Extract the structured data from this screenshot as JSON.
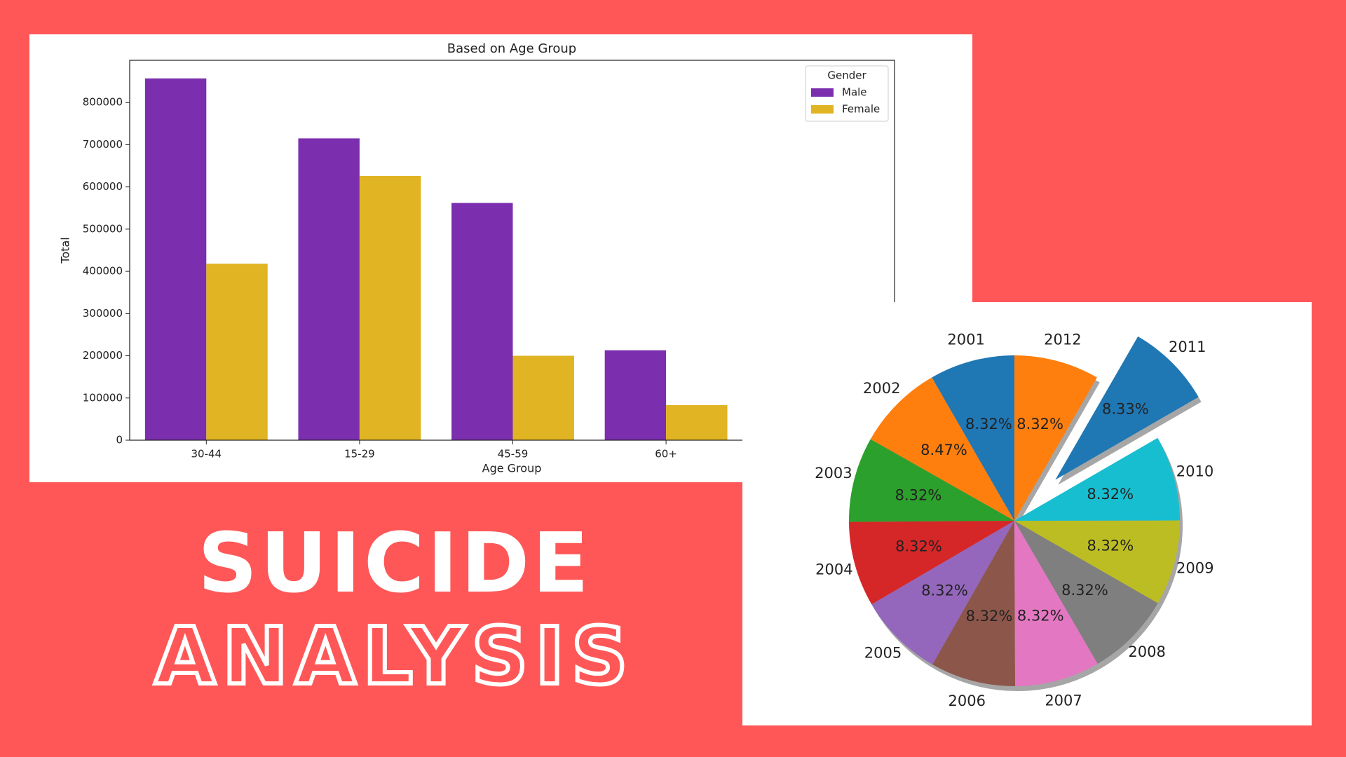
{
  "banner": {
    "line1": "SUICIDE",
    "line2": "ANALYSIS"
  },
  "chart_data": [
    {
      "type": "bar",
      "title": "Based on Age Group",
      "x_label": "Age Group",
      "y_label": "Total",
      "categories": [
        "30-44",
        "15-29",
        "45-59",
        "60+"
      ],
      "series": [
        {
          "name": "Male",
          "color": "#7b2fae",
          "values": [
            857000,
            715000,
            562000,
            213000
          ]
        },
        {
          "name": "Female",
          "color": "#e0b422",
          "values": [
            418000,
            626000,
            200000,
            83000
          ]
        }
      ],
      "legend_title": "Gender",
      "legend": "upper right",
      "ylim": [
        0,
        900000
      ],
      "yticks": [
        0,
        100000,
        200000,
        300000,
        400000,
        500000,
        600000,
        700000,
        800000
      ]
    },
    {
      "type": "pie",
      "shadow": true,
      "categories": [
        "2001",
        "2002",
        "2003",
        "2004",
        "2005",
        "2006",
        "2007",
        "2008",
        "2009",
        "2010",
        "2011",
        "2012"
      ],
      "values": [
        8.32,
        8.47,
        8.32,
        8.32,
        8.32,
        8.32,
        8.32,
        8.32,
        8.32,
        8.32,
        8.33,
        8.32
      ],
      "value_labels": [
        "8.32%",
        "8.47%",
        "8.32%",
        "8.32%",
        "8.32%",
        "8.32%",
        "8.32%",
        "8.32%",
        "8.32%",
        "8.32%",
        "8.33%",
        "8.32%"
      ],
      "colors": [
        "#1f77b4",
        "#ff7f0e",
        "#2ca02c",
        "#d62728",
        "#9467bd",
        "#8c564b",
        "#e377c2",
        "#7f7f7f",
        "#bcbd22",
        "#17becf",
        "#1f77b4",
        "#ff7f0e"
      ],
      "explode": [
        0,
        0,
        0,
        0,
        0,
        0,
        0,
        0,
        0,
        0,
        0.35,
        0
      ]
    }
  ]
}
